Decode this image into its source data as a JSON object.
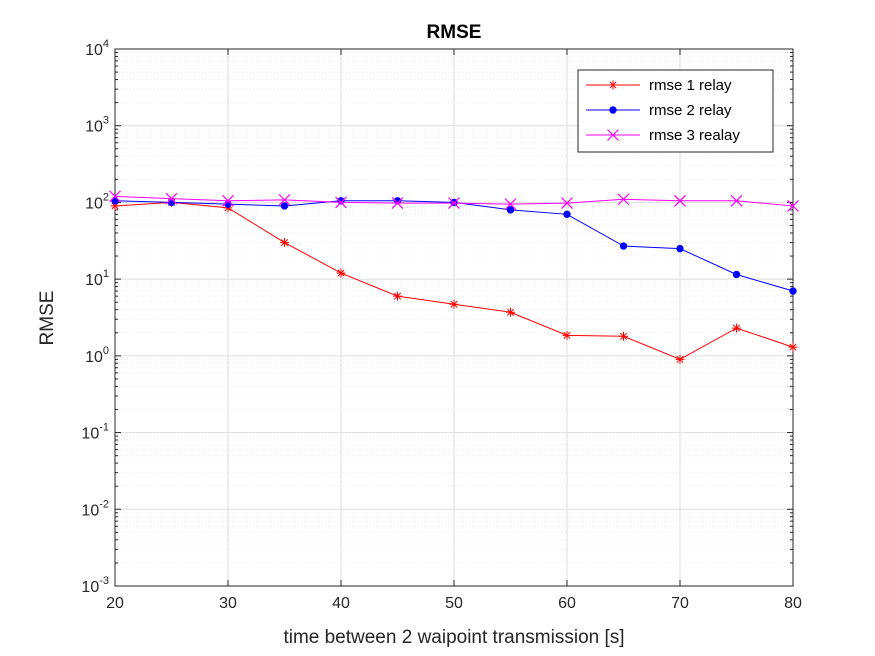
{
  "chart_data": {
    "type": "line",
    "title": "RMSE",
    "xlabel": "time between 2 waipoint transmission [s]",
    "ylabel": "RMSE",
    "x": [
      20,
      25,
      30,
      35,
      40,
      45,
      50,
      55,
      60,
      65,
      70,
      75,
      80
    ],
    "xlim": [
      20,
      80
    ],
    "xticks": [
      "20",
      "30",
      "40",
      "50",
      "60",
      "70",
      "80"
    ],
    "yscale": "log",
    "ylim": [
      0.001,
      10000
    ],
    "yticks": [
      {
        "base": "10",
        "exp": "-3"
      },
      {
        "base": "10",
        "exp": "-2"
      },
      {
        "base": "10",
        "exp": "-1"
      },
      {
        "base": "10",
        "exp": "0"
      },
      {
        "base": "10",
        "exp": "1"
      },
      {
        "base": "10",
        "exp": "2"
      },
      {
        "base": "10",
        "exp": "3"
      },
      {
        "base": "10",
        "exp": "4"
      }
    ],
    "grid": true,
    "minor_grid": true,
    "legend_position": "top-right",
    "series": [
      {
        "name": "rmse 1 relay",
        "color": "#ff0000",
        "marker": "asterisk",
        "values": [
          90,
          100,
          85,
          30,
          12,
          6,
          4.7,
          3.7,
          1.85,
          1.8,
          0.9,
          2.3,
          1.3
        ]
      },
      {
        "name": "rmse 2 relay",
        "color": "#0000ff",
        "marker": "dot",
        "values": [
          105,
          100,
          95,
          90,
          105,
          105,
          100,
          80,
          70,
          27,
          25,
          11.5,
          7
        ]
      },
      {
        "name": "rmse 3 realay",
        "color": "#ff00ff",
        "marker": "x",
        "values": [
          120,
          112,
          105,
          108,
          100,
          98,
          98,
          95,
          98,
          110,
          105,
          105,
          90
        ]
      }
    ]
  }
}
